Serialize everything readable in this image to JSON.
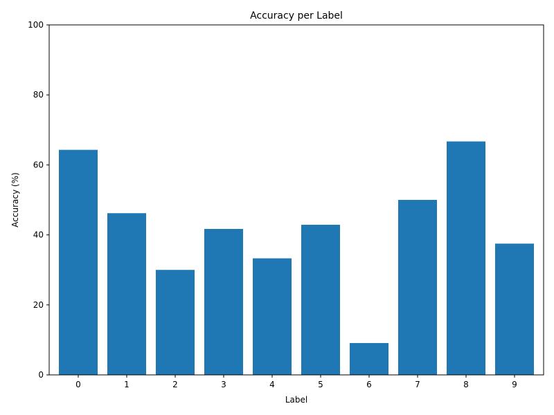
{
  "chart_data": {
    "type": "bar",
    "title": "Accuracy per Label",
    "xlabel": "Label",
    "ylabel": "Accuracy (%)",
    "categories": [
      "0",
      "1",
      "2",
      "3",
      "4",
      "5",
      "6",
      "7",
      "8",
      "9"
    ],
    "values": [
      64.3,
      46.2,
      30.0,
      41.7,
      33.3,
      42.9,
      9.1,
      50.0,
      66.7,
      37.5
    ],
    "ylim": [
      0,
      100
    ],
    "yticks": [
      "0",
      "20",
      "40",
      "60",
      "80",
      "100"
    ],
    "grid": false,
    "legend": "none",
    "bar_color": "#1f77b4"
  }
}
